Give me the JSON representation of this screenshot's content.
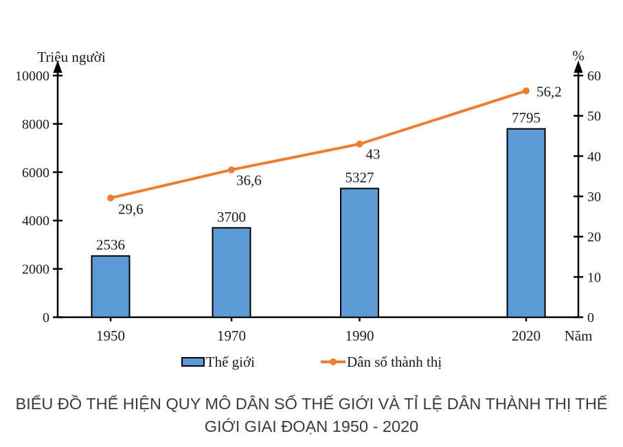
{
  "chart_data": {
    "type": "bar",
    "combo": "bar+line",
    "title": "BIỂU ĐỒ THỂ HIỆN QUY MÔ DÂN SỐ THẾ GIỚI VÀ TỈ LỆ DÂN THÀNH THỊ THẾ GIỚI GIAI ĐOẠN 1950 - 2020",
    "categories": [
      "1950",
      "1970",
      "1990",
      "2020"
    ],
    "series": [
      {
        "name": "Thế giới",
        "type": "bar",
        "axis": "left",
        "values": [
          2536,
          3700,
          5327,
          7795
        ],
        "labels": [
          "2536",
          "3700",
          "5327",
          "7795"
        ]
      },
      {
        "name": "Dân số thành thị",
        "type": "line",
        "axis": "right",
        "values": [
          29.6,
          36.6,
          43,
          56.2
        ],
        "labels": [
          "29,6",
          "36,6",
          "43",
          "56,2"
        ]
      }
    ],
    "left_axis": {
      "label": "Triệu người",
      "min": 0,
      "max": 10000,
      "ticks": [
        "0",
        "2000",
        "4000",
        "6000",
        "8000",
        "10000"
      ]
    },
    "right_axis": {
      "label": "%",
      "min": 0,
      "max": 60,
      "ticks": [
        "0",
        "10",
        "20",
        "30",
        "40",
        "50",
        "60"
      ]
    },
    "x_axis": {
      "label": "Năm"
    },
    "legend": [
      {
        "label": "Thế giới",
        "marker": "bar-swatch"
      },
      {
        "label": "Dân số thành thị",
        "marker": "line-marker"
      }
    ],
    "legend_position": "bottom",
    "grid": false,
    "colors": {
      "bar_fill": "#5B9BD5",
      "bar_stroke": "#000000",
      "line": "#ED7D31",
      "axis": "#000000",
      "text": "#1a1a1a"
    }
  }
}
